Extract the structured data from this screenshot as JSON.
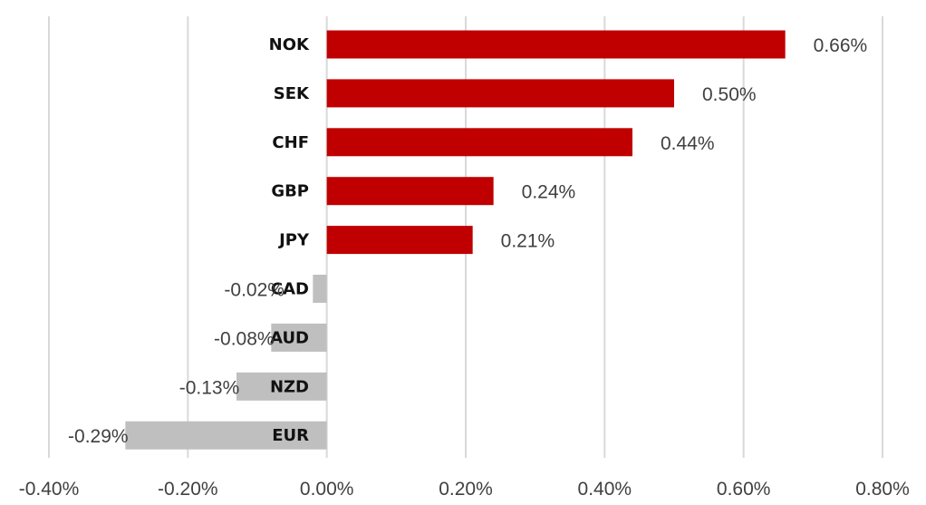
{
  "chart_data": {
    "type": "bar",
    "orientation": "horizontal",
    "categories": [
      "NOK",
      "SEK",
      "CHF",
      "GBP",
      "JPY",
      "CAD",
      "AUD",
      "NZD",
      "EUR"
    ],
    "values": [
      0.66,
      0.5,
      0.44,
      0.24,
      0.21,
      -0.02,
      -0.08,
      -0.13,
      -0.29
    ],
    "value_labels": [
      "0.66%",
      "0.50%",
      "0.44%",
      "0.24%",
      "0.21%",
      "-0.02%",
      "-0.08%",
      "-0.13%",
      "-0.29%"
    ],
    "xlim": [
      -0.4,
      0.8
    ],
    "x_ticks": [
      -0.4,
      -0.2,
      0.0,
      0.2,
      0.4,
      0.6,
      0.8
    ],
    "x_tick_labels": [
      "-0.40%",
      "-0.20%",
      "0.00%",
      "0.20%",
      "0.40%",
      "0.60%",
      "0.80%"
    ],
    "title": "",
    "xlabel": "",
    "ylabel": "",
    "grid": "vertical",
    "legend": "none",
    "colors": {
      "positive": "#c00000",
      "negative": "#bfbfbf",
      "grid": "#d9d9d9",
      "text": "#404040",
      "category_text": "#111111"
    }
  }
}
